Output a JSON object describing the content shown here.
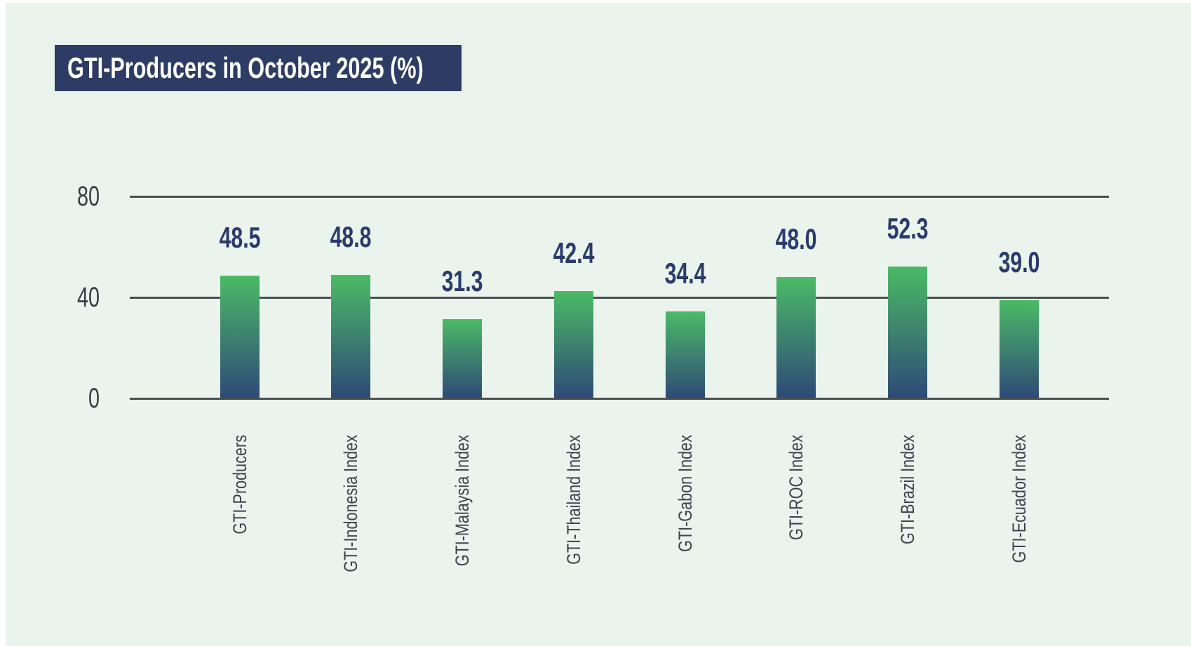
{
  "page": {
    "background": "#ffffff",
    "panel_background": "#eaf3ec"
  },
  "chart_data": {
    "type": "bar",
    "title": "GTI-Producers in October 2025 (%)",
    "categories": [
      "GTI-Producers",
      "GTI-Indonesia Index",
      "GTI-Malaysia Index",
      "GTI-Thailand Index",
      "GTI-Gabon Index",
      "GTI-ROC Index",
      "GTI-Brazil Index",
      "GTI-Ecuador Index"
    ],
    "values": [
      48.5,
      48.8,
      31.3,
      42.4,
      34.4,
      48.0,
      52.3,
      39.0
    ],
    "value_labels": [
      "48.5",
      "48.8",
      "31.3",
      "42.4",
      "34.4",
      "48.0",
      "52.3",
      "39.0"
    ],
    "xlabel": "",
    "ylabel": "",
    "ylim": [
      0,
      80
    ],
    "yticks": [
      0,
      40,
      80
    ],
    "ytick_labels": [
      "0",
      "40",
      "80"
    ],
    "grid": "horizontal-gridlines-on",
    "legend": "none",
    "bar_orientation": "vertical",
    "category_label_rotation_degrees": 90,
    "colors": {
      "bar_gradient_top": "#4bba66",
      "bar_gradient_bottom": "#2e4977",
      "title_box_background": "#2d3c64",
      "title_text": "#ffffff",
      "value_label_text": "#2a3a6b",
      "grid_line": "#4a4f50",
      "tick_label_text": "#363d44",
      "category_label_text": "#3b444e"
    }
  }
}
